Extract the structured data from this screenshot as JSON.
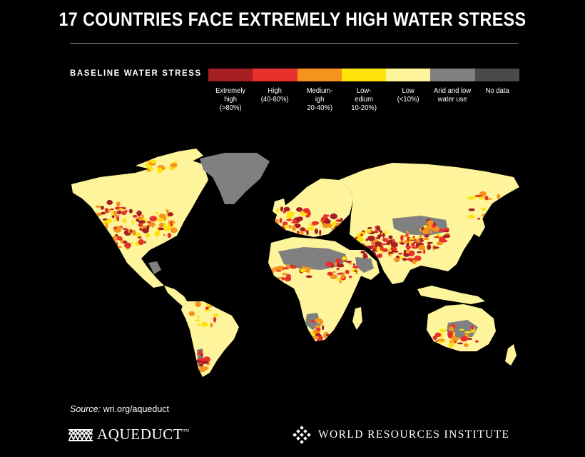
{
  "title": "17 COUNTRIES FACE EXTREMELY HIGH WATER STRESS",
  "legend": {
    "title": "BASELINE WATER STRESS",
    "items": [
      {
        "label": "Extremely high (>80%)",
        "color": "#a51f23"
      },
      {
        "label": "High (40-80%)",
        "color": "#e8302d"
      },
      {
        "label": "Medium-high (20-40%)",
        "color": "#f6921e"
      },
      {
        "label": "Low-medium (10-20%)",
        "color": "#fde30a"
      },
      {
        "label": "Low (<10%)",
        "color": "#fdf49c"
      },
      {
        "label": "Arid and low water use",
        "color": "#808080"
      },
      {
        "label": "No data",
        "color": "#4a4a4a"
      }
    ]
  },
  "source": {
    "prefix": "Source:",
    "text": "wri.org/aqueduct"
  },
  "logos": {
    "aqueduct": "AQUEDUCT",
    "aqueduct_tm": "™",
    "wri": "WORLD RESOURCES INSTITUTE"
  },
  "icons": {
    "aqueduct": "aqueduct-arches-icon",
    "wri": "wri-lattice-icon"
  }
}
